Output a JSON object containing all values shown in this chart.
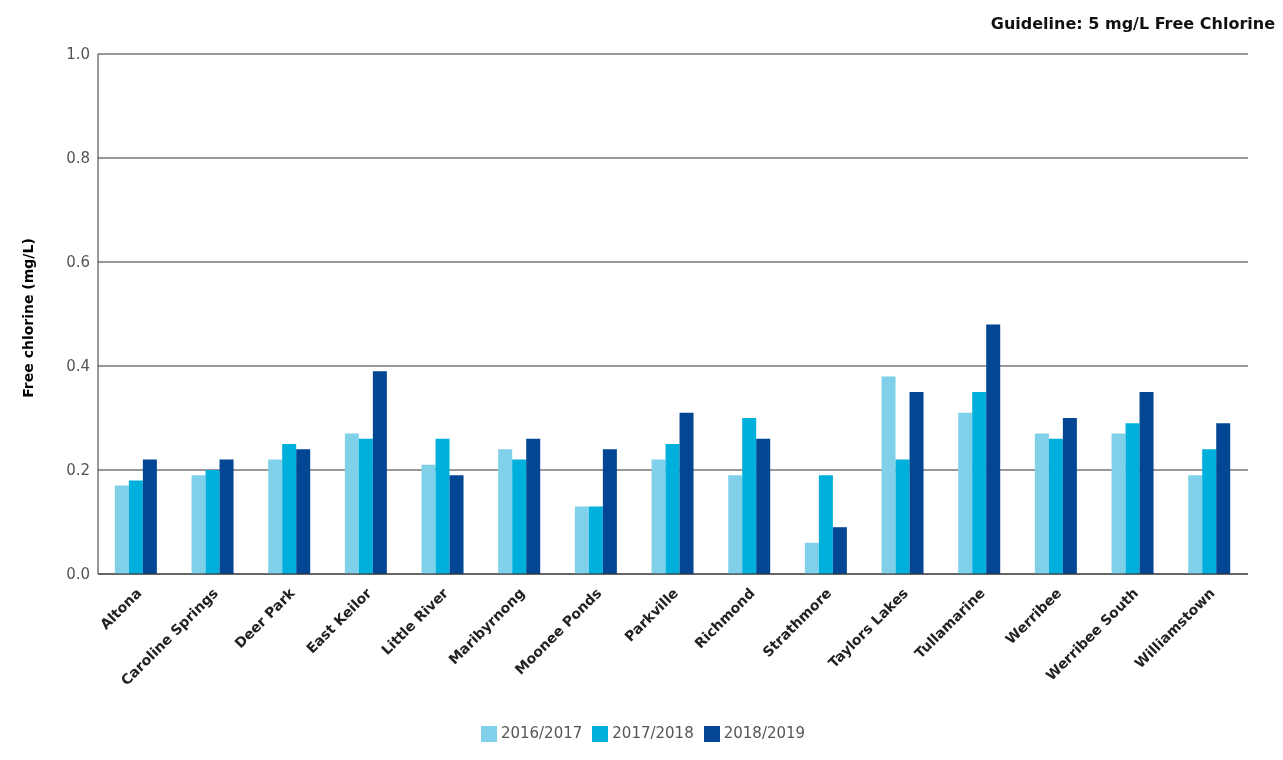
{
  "chart_data": {
    "type": "bar",
    "title": "Guideline: 5 mg/L Free Chlorine",
    "ylabel": "Free chlorine (mg/L)",
    "categories": [
      "Altona",
      "Caroline Springs",
      "Deer Park",
      "East Keilor",
      "Little River",
      "Maribyrnong",
      "Moonee Ponds",
      "Parkville",
      "Richmond",
      "Strathmore",
      "Taylors Lakes",
      "Tullamarine",
      "Werribee",
      "Werribee South",
      "Williamstown"
    ],
    "series": [
      {
        "name": "2016/2017",
        "color": "#7fd0e8",
        "values": [
          0.17,
          0.19,
          0.22,
          0.27,
          0.21,
          0.24,
          0.13,
          0.22,
          0.19,
          0.06,
          0.38,
          0.31,
          0.27,
          0.27,
          0.19
        ]
      },
      {
        "name": "2017/2018",
        "color": "#00b0dc",
        "values": [
          0.18,
          0.2,
          0.25,
          0.26,
          0.26,
          0.22,
          0.13,
          0.25,
          0.3,
          0.19,
          0.22,
          0.35,
          0.26,
          0.29,
          0.24
        ]
      },
      {
        "name": "2018/2019",
        "color": "#034694",
        "values": [
          0.22,
          0.22,
          0.24,
          0.39,
          0.19,
          0.26,
          0.24,
          0.31,
          0.26,
          0.09,
          0.35,
          0.48,
          0.3,
          0.35,
          0.29
        ]
      }
    ],
    "ylim": [
      0,
      1
    ],
    "yticks": [
      {
        "value": 0,
        "label": "0.0"
      },
      {
        "value": 0.2,
        "label": "0.2"
      },
      {
        "value": 0.4,
        "label": "0.4"
      },
      {
        "value": 0.6,
        "label": "0.6"
      },
      {
        "value": 0.8,
        "label": "0.8"
      },
      {
        "value": 1,
        "label": "1.0"
      }
    ],
    "grid": "y",
    "legend": "bottom"
  }
}
